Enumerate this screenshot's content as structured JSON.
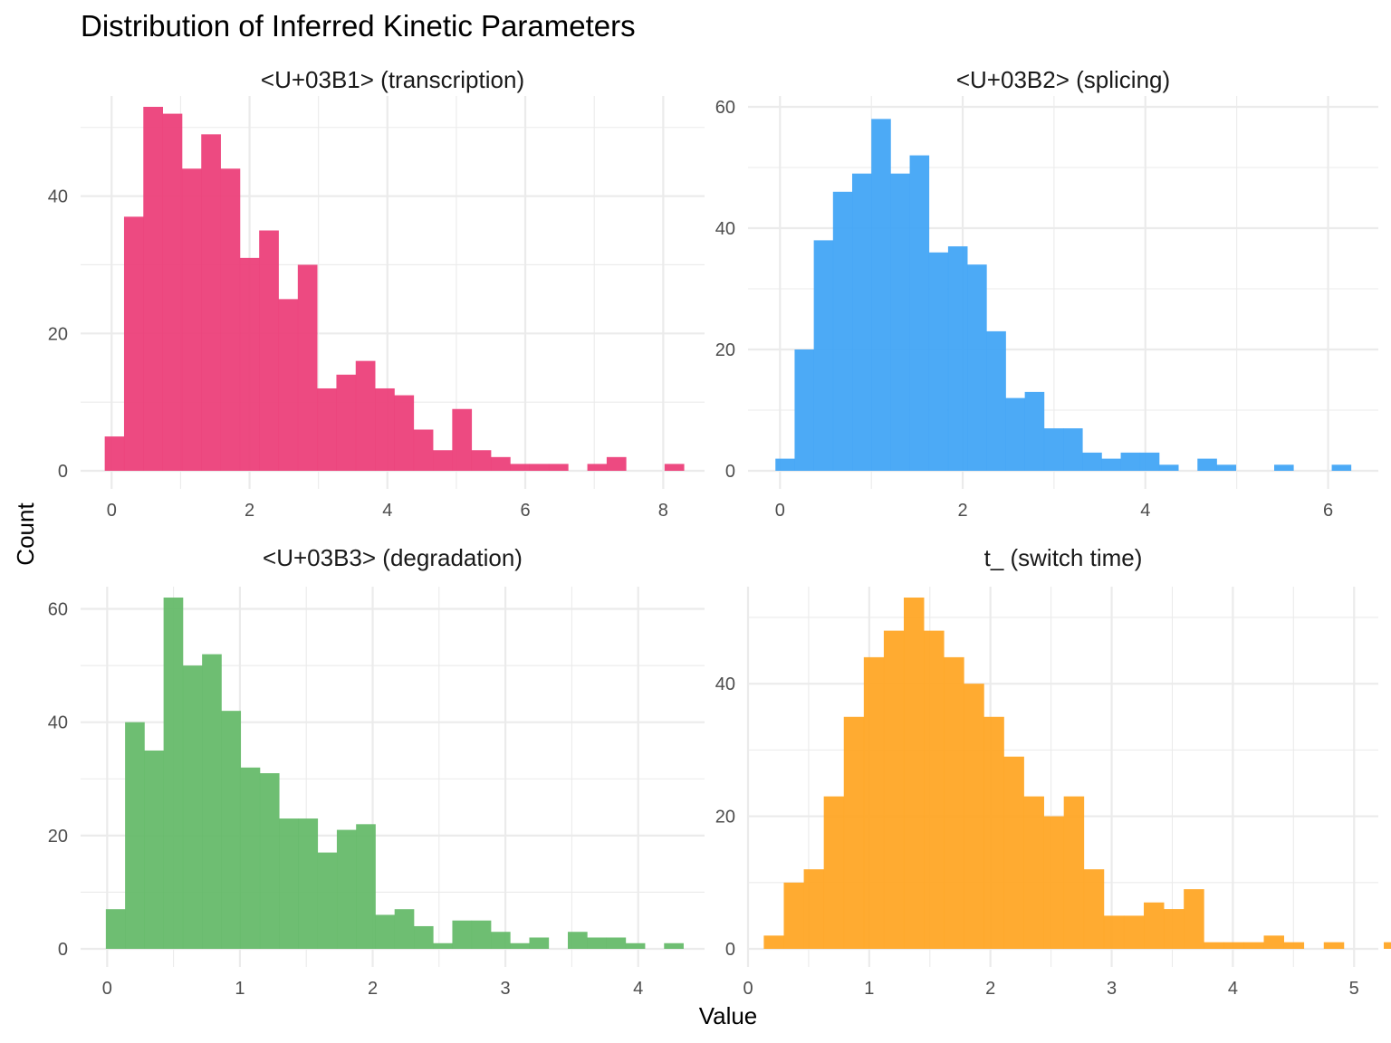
{
  "chart_data": {
    "type": "histogram",
    "title": "Distribution of Inferred Kinetic Parameters",
    "xlabel": "Value",
    "ylabel": "Count",
    "grid": true,
    "facets": [
      {
        "name": "<U+03B1> (transcription)",
        "color": "#EC407A",
        "bin_start": -0.1,
        "bin_width": 0.28,
        "counts": [
          5,
          37,
          53,
          52,
          44,
          49,
          44,
          31,
          35,
          25,
          30,
          12,
          14,
          16,
          12,
          11,
          6,
          3,
          9,
          3,
          2,
          1,
          1,
          1,
          0,
          1,
          2,
          0,
          0,
          1
        ],
        "xlim": [
          -0.45,
          8.6
        ],
        "ylim": [
          0,
          53
        ],
        "xticks": [
          0,
          2,
          4,
          6,
          8
        ],
        "yticks": [
          0,
          20,
          40
        ]
      },
      {
        "name": "<U+03B2> (splicing)",
        "color": "#42A5F5",
        "bin_start": -0.05,
        "bin_width": 0.21,
        "counts": [
          2,
          20,
          38,
          46,
          49,
          58,
          49,
          52,
          36,
          37,
          34,
          23,
          12,
          13,
          7,
          7,
          3,
          2,
          3,
          3,
          1,
          0,
          2,
          1,
          0,
          0,
          1,
          0,
          0,
          1
        ],
        "xlim": [
          -0.35,
          6.55
        ],
        "ylim": [
          0,
          60
        ],
        "xticks": [
          0,
          2,
          4,
          6
        ],
        "yticks": [
          0,
          20,
          40,
          60
        ]
      },
      {
        "name": "<U+03B3> (degradation)",
        "color": "#66BB6A",
        "bin_start": -0.01,
        "bin_width": 0.145,
        "counts": [
          7,
          40,
          35,
          62,
          50,
          52,
          42,
          32,
          31,
          23,
          23,
          17,
          21,
          22,
          6,
          7,
          4,
          1,
          5,
          5,
          3,
          1,
          2,
          0,
          3,
          2,
          2,
          1,
          0,
          1
        ],
        "xlim": [
          -0.2,
          4.5
        ],
        "ylim": [
          0,
          62
        ],
        "xticks": [
          0,
          1,
          2,
          3,
          4
        ],
        "yticks": [
          0,
          20,
          40,
          60
        ]
      },
      {
        "name": "t_ (switch time)",
        "color": "#FFA726",
        "bin_start": 0.13,
        "bin_width": 0.165,
        "counts": [
          2,
          10,
          12,
          23,
          35,
          44,
          48,
          53,
          48,
          44,
          40,
          35,
          29,
          23,
          20,
          23,
          12,
          5,
          5,
          7,
          6,
          9,
          1,
          1,
          1,
          2,
          1,
          0,
          1,
          0,
          0,
          1
        ],
        "xlim": [
          0.0,
          5.2
        ],
        "ylim": [
          0,
          53
        ],
        "xticks": [
          0,
          1,
          2,
          3,
          4,
          5
        ],
        "yticks": [
          0,
          20,
          40
        ]
      }
    ]
  }
}
